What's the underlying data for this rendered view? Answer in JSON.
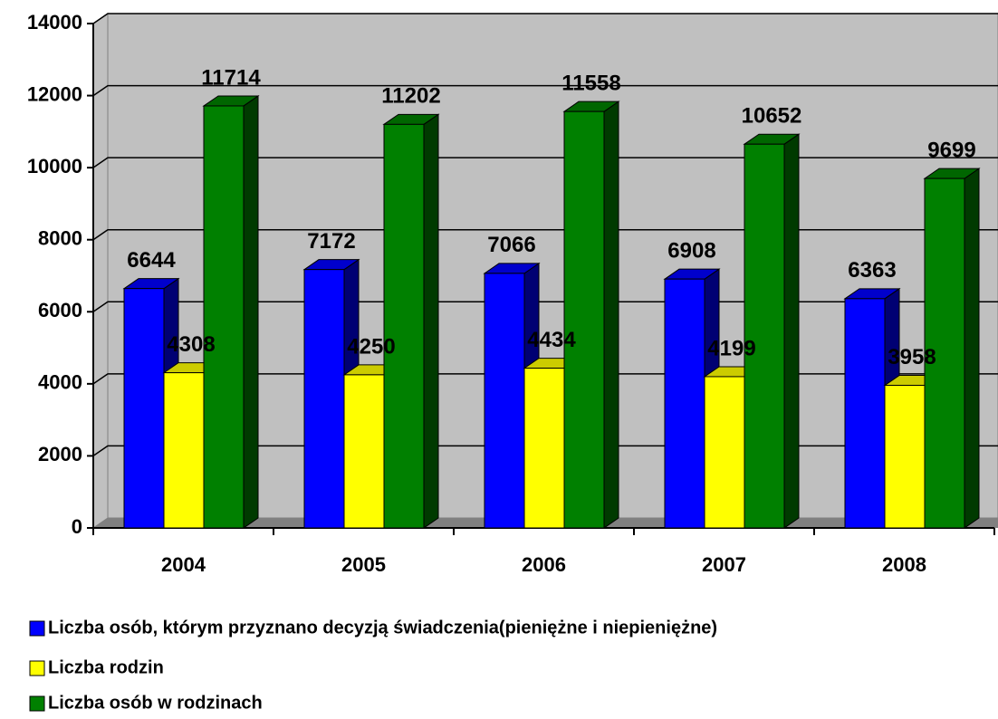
{
  "chart_data": {
    "type": "bar3d",
    "categories": [
      "2004",
      "2005",
      "2006",
      "2007",
      "2008"
    ],
    "series": [
      {
        "name": "Liczba osób, którym przyznano decyzją świadczenia(pieniężne i niepieniężne)",
        "color": "#0000ff",
        "values": [
          6644,
          7172,
          7066,
          6908,
          6363
        ]
      },
      {
        "name": "Liczba rodzin",
        "color": "#ffff00",
        "values": [
          4308,
          4250,
          4434,
          4199,
          3958
        ]
      },
      {
        "name": "Liczba osób w rodzinach",
        "color": "#008000",
        "values": [
          11714,
          11202,
          11558,
          10652,
          9699
        ]
      }
    ],
    "ylim": [
      0,
      14000
    ],
    "yticks": [
      0,
      2000,
      4000,
      6000,
      8000,
      10000,
      12000,
      14000
    ],
    "grid": true
  }
}
